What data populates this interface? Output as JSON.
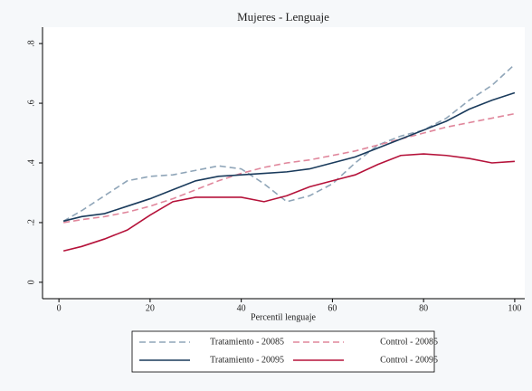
{
  "chart_data": {
    "type": "line",
    "title": "Mujeres - Lenguaje",
    "xlabel": "Percentil lenguaje",
    "x": [
      1,
      5,
      10,
      15,
      20,
      25,
      30,
      35,
      40,
      45,
      50,
      55,
      60,
      65,
      70,
      75,
      80,
      85,
      90,
      95,
      100
    ],
    "xlim": [
      -3.6,
      102.2
    ],
    "xticks": [
      0,
      20,
      40,
      60,
      80,
      100
    ],
    "ylim": [
      -0.055,
      0.855
    ],
    "yticks": [
      0,
      {
        "value": 0.2,
        "label": ".2"
      },
      {
        "value": 0.4,
        "label": ".4"
      },
      {
        "value": 0.6,
        "label": ".6"
      },
      {
        "value": 0.8,
        "label": ".8"
      }
    ],
    "series": [
      {
        "name": "Tratamiento - 20085",
        "color": "#8fa5b8",
        "dashed": true,
        "values": [
          0.205,
          0.24,
          0.29,
          0.34,
          0.355,
          0.36,
          0.375,
          0.39,
          0.38,
          0.33,
          0.27,
          0.29,
          0.33,
          0.4,
          0.46,
          0.49,
          0.51,
          0.55,
          0.61,
          0.66,
          0.73
        ]
      },
      {
        "name": "Control - 20085",
        "color": "#e0879c",
        "dashed": true,
        "values": [
          0.2,
          0.21,
          0.22,
          0.235,
          0.255,
          0.28,
          0.31,
          0.34,
          0.365,
          0.385,
          0.4,
          0.41,
          0.425,
          0.44,
          0.46,
          0.48,
          0.5,
          0.52,
          0.535,
          0.55,
          0.565
        ]
      },
      {
        "name": "Tratamiento - 20095",
        "color": "#1a3b5c",
        "dashed": false,
        "values": [
          0.205,
          0.22,
          0.23,
          0.255,
          0.28,
          0.31,
          0.34,
          0.355,
          0.36,
          0.365,
          0.37,
          0.38,
          0.4,
          0.42,
          0.45,
          0.48,
          0.51,
          0.54,
          0.58,
          0.61,
          0.635
        ]
      },
      {
        "name": "Control - 20095",
        "color": "#b5123a",
        "dashed": false,
        "values": [
          0.105,
          0.12,
          0.145,
          0.175,
          0.225,
          0.27,
          0.285,
          0.285,
          0.285,
          0.27,
          0.29,
          0.32,
          0.34,
          0.36,
          0.395,
          0.425,
          0.43,
          0.425,
          0.415,
          0.4,
          0.405
        ]
      }
    ]
  }
}
